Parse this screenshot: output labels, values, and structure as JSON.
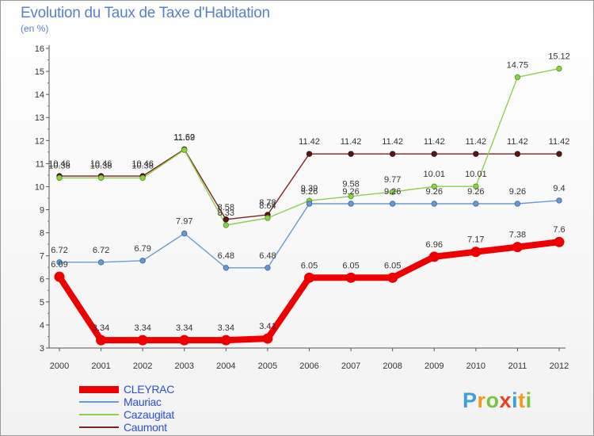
{
  "header": {
    "title": "Evolution du Taux de Taxe d'Habitation",
    "subtitle": "(en %)"
  },
  "logo": {
    "letters": [
      "P",
      "r",
      "o",
      "x",
      "i",
      "t",
      "i"
    ],
    "colors": [
      "#3aa0d8",
      "#f29a1d",
      "#7cc242",
      "#e8401c",
      "#3aa0d8",
      "#f29a1d",
      "#7cc242"
    ]
  },
  "chart_data": {
    "type": "line",
    "x": [
      "2000",
      "2001",
      "2002",
      "2003",
      "2004",
      "2005",
      "2006",
      "2007",
      "2008",
      "2009",
      "2010",
      "2011",
      "2012"
    ],
    "yticks": [
      "3",
      "4",
      "5",
      "6",
      "7",
      "8",
      "9",
      "10",
      "11",
      "12",
      "13",
      "14",
      "15",
      "16"
    ],
    "ylim": [
      3,
      16
    ],
    "grid": false,
    "legend_position": "bottom-left",
    "series": [
      {
        "name": "CLEYRAC",
        "color": "#ee0000",
        "values": [
          6.09,
          3.34,
          3.34,
          3.34,
          3.34,
          3.41,
          6.05,
          6.05,
          6.05,
          6.96,
          7.17,
          7.38,
          7.6
        ],
        "labels": [
          "6.09",
          "3.34",
          "3.34",
          "3.34",
          "3.34",
          "3.41",
          "6.05",
          "6.05",
          "6.05",
          "6.96",
          "7.17",
          "7.38",
          "7.6"
        ]
      },
      {
        "name": "Mauriac",
        "color": "#6a9bd0",
        "values": [
          6.72,
          6.72,
          6.79,
          7.97,
          6.48,
          6.48,
          9.26,
          9.26,
          9.26,
          9.26,
          9.26,
          9.26,
          9.4
        ],
        "labels": [
          "6.72",
          "6.72",
          "6.79",
          "7.97",
          "6.48",
          "6.48",
          "9.26",
          "9.26",
          "9.26",
          "9.26",
          "9.26",
          "9.26",
          "9.4"
        ]
      },
      {
        "name": "Cazaugitat",
        "color": "#8ed04a",
        "values": [
          10.38,
          10.38,
          10.38,
          11.59,
          8.33,
          8.64,
          9.39,
          9.58,
          9.77,
          10.01,
          10.01,
          14.75,
          15.12
        ],
        "labels": [
          "10.38",
          "10.38",
          "10.38",
          "11.59",
          "8.33",
          "8.64",
          "9.39",
          "9.58",
          "9.77",
          "10.01",
          "10.01",
          "14.75",
          "15.12"
        ]
      },
      {
        "name": "Caumont",
        "color": "#7a2424",
        "values": [
          10.46,
          10.46,
          10.46,
          11.62,
          8.58,
          8.78,
          11.42,
          11.42,
          11.42,
          11.42,
          11.42,
          11.42,
          11.42
        ],
        "labels": [
          "10.46",
          "10.46",
          "10.46",
          "11.62",
          "8.58",
          "8.78",
          "11.42",
          "11.42",
          "11.42",
          "11.42",
          "11.42",
          "11.42",
          "11.42"
        ]
      }
    ]
  }
}
